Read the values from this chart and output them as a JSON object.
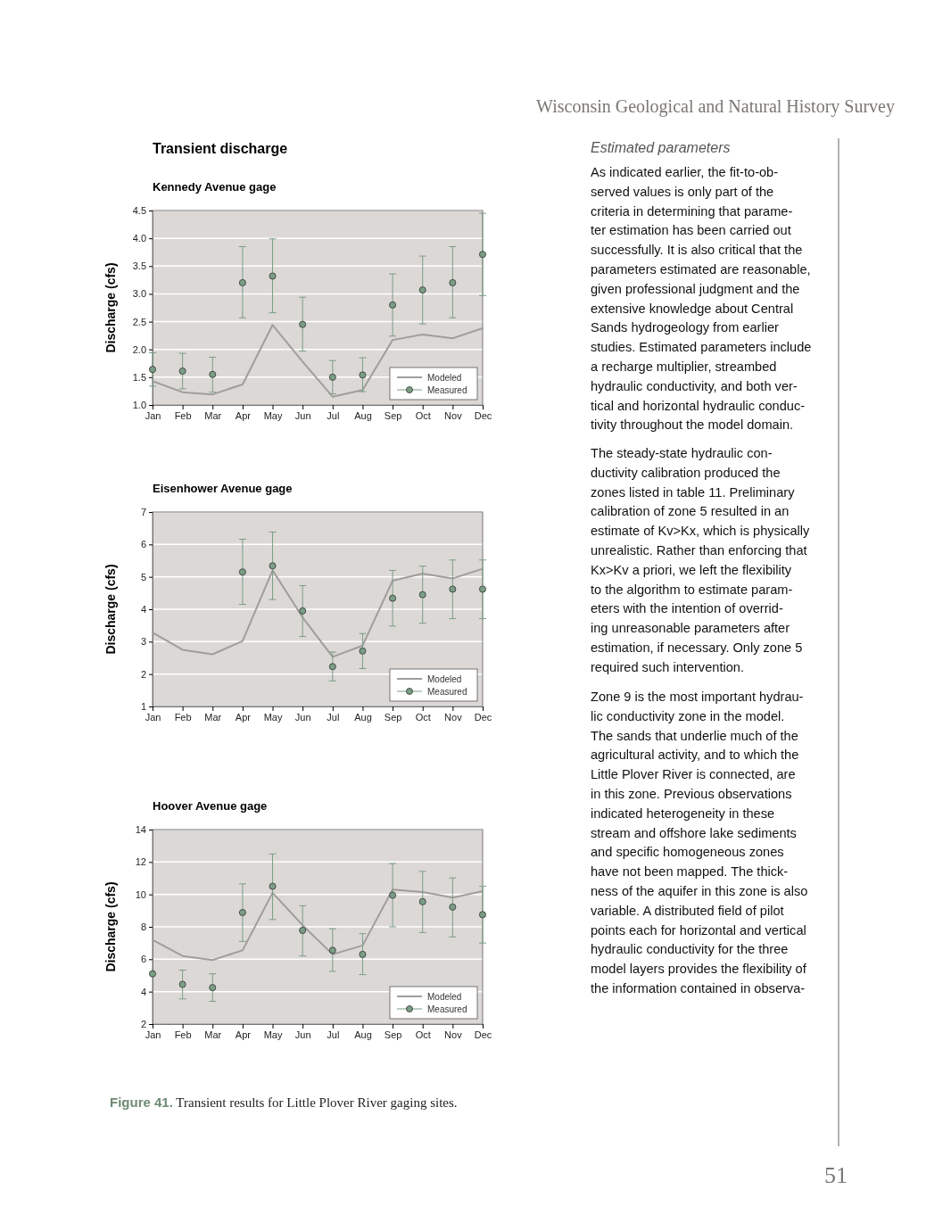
{
  "chart_data": [
    {
      "type": "line",
      "title": "Transient discharge",
      "subtitle": "Kennedy Avenue gage",
      "ylabel": "Discharge (cfs)",
      "categories": [
        "Jan",
        "Feb",
        "Mar",
        "Apr",
        "May",
        "Jun",
        "Jul",
        "Aug",
        "Sep",
        "Oct",
        "Nov",
        "Dec"
      ],
      "ylim": [
        1,
        4.5
      ],
      "yticks": [
        {
          "value": 1,
          "label": "1.0"
        },
        {
          "value": 1.5,
          "label": "1.5"
        },
        {
          "value": 2,
          "label": "2.0"
        },
        {
          "value": 2.5,
          "label": "2.5"
        },
        {
          "value": 3,
          "label": "3.0"
        },
        {
          "value": 3.5,
          "label": "3.5"
        },
        {
          "value": 4,
          "label": "4.0"
        },
        {
          "value": 4.5,
          "label": "4.5"
        }
      ],
      "grid": "y",
      "legend": "bottom right",
      "series": [
        {
          "name": "Modeled",
          "type": "line",
          "color": "#a19d9c",
          "marker": "none",
          "values": [
            1.43,
            1.23,
            1.19,
            1.37,
            2.44,
            1.78,
            1.15,
            1.27,
            2.17,
            2.27,
            2.2,
            2.38
          ]
        },
        {
          "name": "Measured",
          "type": "scatter",
          "color": "#7a9e84",
          "marker": "circle",
          "values": [
            1.64,
            1.61,
            1.55,
            3.2,
            3.32,
            2.45,
            1.5,
            1.54,
            2.8,
            3.07,
            3.2,
            3.71
          ],
          "errors": [
            [
              1.34,
              1.94
            ],
            [
              1.29,
              1.93
            ],
            [
              1.23,
              1.86
            ],
            [
              2.57,
              3.85
            ],
            [
              2.66,
              3.99
            ],
            [
              1.97,
              2.94
            ],
            [
              1.2,
              1.8
            ],
            [
              1.24,
              1.85
            ],
            [
              2.24,
              3.36
            ],
            [
              2.46,
              3.68
            ],
            [
              2.57,
              3.85
            ],
            [
              2.97,
              4.45
            ]
          ]
        }
      ]
    },
    {
      "type": "line",
      "title": "Eisenhower Avenue gage",
      "ylabel": "Discharge (cfs)",
      "categories": [
        "Jan",
        "Feb",
        "Mar",
        "Apr",
        "May",
        "Jun",
        "Jul",
        "Aug",
        "Sep",
        "Oct",
        "Nov",
        "Dec"
      ],
      "ylim": [
        1,
        7
      ],
      "yticks": [
        1,
        2,
        3,
        4,
        5,
        6,
        7
      ],
      "grid": "y",
      "legend": "bottom right",
      "series": [
        {
          "name": "Modeled",
          "type": "line",
          "color": "#a19d9c",
          "marker": "none",
          "values": [
            3.28,
            2.75,
            2.61,
            3.02,
            5.2,
            3.75,
            2.53,
            2.88,
            4.88,
            5.1,
            4.95,
            5.25
          ]
        },
        {
          "name": "Measured",
          "type": "scatter",
          "color": "#7a9e84",
          "marker": "circle",
          "values": [
            null,
            null,
            null,
            5.15,
            5.34,
            3.95,
            2.23,
            2.71,
            4.34,
            4.45,
            4.62,
            4.62
          ],
          "errors": [
            null,
            null,
            null,
            [
              4.15,
              6.16
            ],
            [
              4.3,
              6.38
            ],
            [
              3.16,
              4.73
            ],
            [
              1.79,
              2.68
            ],
            [
              2.17,
              3.25
            ],
            [
              3.48,
              5.2
            ],
            [
              3.57,
              5.33
            ],
            [
              3.71,
              5.52
            ],
            [
              3.71,
              5.52
            ]
          ]
        }
      ]
    },
    {
      "type": "line",
      "title": "Hoover Avenue gage",
      "ylabel": "Discharge (cfs)",
      "categories": [
        "Jan",
        "Feb",
        "Mar",
        "Apr",
        "May",
        "Jun",
        "Jul",
        "Aug",
        "Sep",
        "Oct",
        "Nov",
        "Dec"
      ],
      "ylim": [
        2,
        14
      ],
      "yticks": [
        2,
        4,
        6,
        8,
        10,
        12,
        14
      ],
      "grid": "y",
      "legend": "bottom right",
      "annotations": [
        "Figure 41. Transient results for Little Plover River gaging sites."
      ],
      "series": [
        {
          "name": "Modeled",
          "type": "line",
          "color": "#a19d9c",
          "marker": "none",
          "values": [
            7.2,
            6.2,
            5.95,
            6.55,
            10.1,
            8.1,
            6.3,
            6.85,
            10.3,
            10.15,
            9.8,
            10.2
          ]
        },
        {
          "name": "Measured",
          "type": "scatter",
          "color": "#7a9e84",
          "marker": "circle",
          "values": [
            5.1,
            4.45,
            4.25,
            8.88,
            10.5,
            7.78,
            6.55,
            6.3,
            9.95,
            9.55,
            9.22,
            8.75
          ],
          "errors": [
            null,
            [
              3.55,
              5.33
            ],
            [
              3.4,
              5.1
            ],
            [
              7.1,
              10.65
            ],
            [
              8.45,
              12.5
            ],
            [
              6.2,
              9.3
            ],
            [
              5.25,
              7.88
            ],
            [
              5.05,
              7.58
            ],
            [
              8.0,
              11.9
            ],
            [
              7.65,
              11.42
            ],
            [
              7.38,
              11.02
            ],
            [
              7.0,
              10.5
            ]
          ]
        }
      ]
    },
    {
      "type": "other",
      "title": "Wisconsin Geological and Natural History Survey",
      "subtitle": "Estimated parameters",
      "annotations": [
        "As indicated earlier, the fit-to-ob-\nserved values is only part of the\ncriteria in determining that parame-\nter estimation has been carried out\nsuccessfully. It is also critical that the\nparameters estimated are reasonable,\ngiven professional judgment and the\nextensive knowledge about Central\nSands hydrogeology from earlier\nstudies. Estimated parameters include\na recharge multiplier, streambed\nhydraulic conductivity, and both ver-\ntical and horizontal hydraulic conduc-\ntivity throughout the model domain.",
        "The steady-state hydraulic con-\nductivity calibration produced the\nzones listed in table 11. Preliminary\ncalibration of zone 5 resulted in an\nestimate of Kv>Kx, which is physically\nunrealistic. Rather than enforcing that\nKx>Kv a priori, we left the flexibility\nto the algorithm to estimate param-\neters with the intention of overrid-\ning unreasonable parameters after\nestimation, if necessary. Only zone 5\nrequired such intervention.",
        "Zone 9 is the most important hydrau-\nlic conductivity zone in the model.\nThe sands that underlie much of the\nagricultural activity, and to which the\nLittle Plover River is connected, are\nin this zone. Previous observations\nindicated heterogeneity in these\nstream and offshore lake sediments\nand specific homogeneous zones\nhave not been mapped. The thick-\nness of the aquifer in this zone is also\nvariable. A distributed field of pilot\npoints each for horizontal and vertical\nhydraulic conductivity for the three\nmodel layers provides the flexibility of\nthe information contained in observa-",
        "51"
      ]
    }
  ]
}
